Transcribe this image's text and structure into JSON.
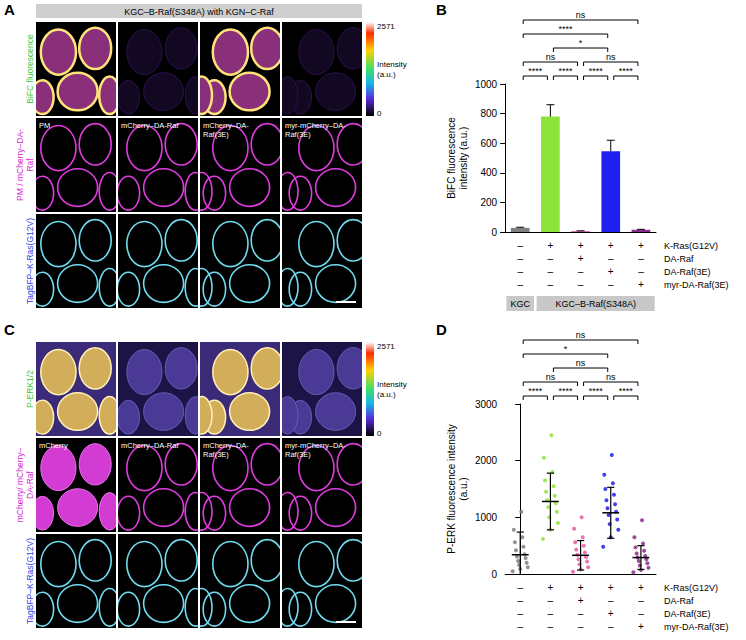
{
  "image_panels": [
    {
      "panel": "A",
      "header": "KGC–B-Raf(S348A) with KGN–C-Raf",
      "rows": [
        {
          "label": "BiFC fluorescence",
          "color": "#3cc83c"
        },
        {
          "label": "PM / mCherry–DA-Raf",
          "color": "#d21fd2"
        },
        {
          "label": "TagBFP–K-Ras(G12V)",
          "color": "#2b3cf0"
        }
      ],
      "columns": [
        "PM",
        "mCherry–DA-Raf",
        "mCherry–DA-Raf(3E)",
        "myr-mCherry–DA-Raf(3E)"
      ],
      "colorbar": {
        "max": 2571,
        "min": 0,
        "label": "Intensity (a.u.)"
      }
    },
    {
      "panel": "C",
      "rows": [
        {
          "label": "P-ERK1/2",
          "color": "#3cc83c"
        },
        {
          "label": "mCherry/ mCherry–DA-Raf",
          "color": "#d21fd2"
        },
        {
          "label": "TagBFP–K-Ras(G12V)",
          "color": "#2b3cf0"
        }
      ],
      "columns": [
        "mCherry",
        "mCherry–DA-Raf",
        "mCherry–DA-Raf(3E)",
        "myr-mCherry–DA-Raf(3E)"
      ],
      "colorbar": {
        "max": 2571,
        "min": 0,
        "label": "Intensity (a.u.)"
      }
    }
  ],
  "chart_data": [
    {
      "panel": "B",
      "type": "bar",
      "y_label": "BiFC fluorescence intensity (a.u.)",
      "categories": [
        null,
        null,
        null,
        null,
        null
      ],
      "values": [
        28,
        780,
        6,
        545,
        15
      ],
      "errors": [
        4,
        80,
        2,
        75,
        3
      ],
      "colors": [
        "#7f7f7f",
        "#8de33c",
        "#e85aa6",
        "#1f1ff0",
        "#8a2a8c"
      ],
      "ylim": [
        0,
        1000
      ],
      "yticks": [
        0,
        200,
        400,
        600,
        800,
        1000
      ],
      "grid": false,
      "conditions": [
        {
          "name": "K-Ras(G12V)",
          "marks": [
            "–",
            "+",
            "+",
            "+",
            "+"
          ]
        },
        {
          "name": "DA-Raf",
          "marks": [
            "–",
            "–",
            "+",
            "–",
            "–"
          ]
        },
        {
          "name": "DA-Raf(3E)",
          "marks": [
            "–",
            "–",
            "–",
            "+",
            "–"
          ]
        },
        {
          "name": "myr-DA-Raf(3E)",
          "marks": [
            "–",
            "–",
            "–",
            "–",
            "+"
          ]
        }
      ],
      "groups": [
        {
          "label": "KGC",
          "from": 0,
          "to": 0
        },
        {
          "label": "KGC–B-Raf(S348A)",
          "from": 1,
          "to": 4
        }
      ],
      "comparisons": [
        {
          "from": 0,
          "to": 4,
          "label": "ns"
        },
        {
          "from": 0,
          "to": 3,
          "label": "****"
        },
        {
          "from": 0,
          "to": 2,
          "label": "ns"
        },
        {
          "from": 0,
          "to": 1,
          "label": "****"
        },
        {
          "from": 1,
          "to": 2,
          "label": "****"
        },
        {
          "from": 1,
          "to": 3,
          "label": "*"
        },
        {
          "from": 2,
          "to": 3,
          "label": "****"
        },
        {
          "from": 2,
          "to": 4,
          "label": "ns"
        },
        {
          "from": 3,
          "to": 4,
          "label": "****"
        }
      ]
    },
    {
      "panel": "D",
      "type": "scatter",
      "y_label": "P-ERK fluorescence intensity (a.u.)",
      "points": [
        [
          50,
          90,
          120,
          160,
          200,
          230,
          280,
          310,
          350,
          420,
          480,
          560,
          650,
          780,
          1100
        ],
        [
          620,
          780,
          900,
          1000,
          1100,
          1180,
          1250,
          1300,
          1380,
          1450,
          1550,
          1650,
          1800,
          2050,
          2450
        ],
        [
          40,
          80,
          120,
          170,
          220,
          260,
          300,
          340,
          380,
          430,
          500,
          560,
          650,
          800,
          1000
        ],
        [
          480,
          650,
          780,
          880,
          960,
          1040,
          1100,
          1160,
          1230,
          1300,
          1400,
          1500,
          1600,
          1750,
          2100
        ],
        [
          30,
          70,
          110,
          150,
          190,
          230,
          260,
          290,
          320,
          360,
          410,
          470,
          540,
          650,
          950
        ]
      ],
      "means": [
        340,
        1280,
        330,
        1080,
        290
      ],
      "sd": [
        400,
        500,
        260,
        450,
        210
      ],
      "colors": [
        "#7f7f7f",
        "#8de33c",
        "#e85aa6",
        "#1f1ff0",
        "#8a2a8c"
      ],
      "ylim": [
        0,
        3000
      ],
      "yticks": [
        0,
        1000,
        2000,
        3000
      ],
      "grid": false,
      "conditions": [
        {
          "name": "K-Ras(G12V)",
          "marks": [
            "–",
            "+",
            "+",
            "+",
            "+"
          ]
        },
        {
          "name": "DA-Raf",
          "marks": [
            "–",
            "–",
            "+",
            "–",
            "–"
          ]
        },
        {
          "name": "DA-Raf(3E)",
          "marks": [
            "–",
            "–",
            "–",
            "+",
            "–"
          ]
        },
        {
          "name": "myr-DA-Raf(3E)",
          "marks": [
            "–",
            "–",
            "–",
            "–",
            "+"
          ]
        }
      ],
      "comparisons": [
        {
          "from": 0,
          "to": 4,
          "label": "ns"
        },
        {
          "from": 0,
          "to": 3,
          "label": "*"
        },
        {
          "from": 0,
          "to": 2,
          "label": "ns"
        },
        {
          "from": 0,
          "to": 1,
          "label": "****"
        },
        {
          "from": 1,
          "to": 2,
          "label": "****"
        },
        {
          "from": 1,
          "to": 3,
          "label": "ns"
        },
        {
          "from": 2,
          "to": 3,
          "label": "****"
        },
        {
          "from": 3,
          "to": 4,
          "label": "****"
        },
        {
          "from": 2,
          "to": 4,
          "label": "ns"
        }
      ]
    }
  ]
}
